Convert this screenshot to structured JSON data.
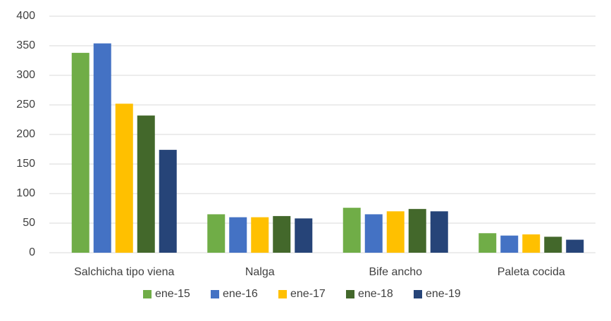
{
  "chart_data": {
    "type": "bar",
    "categories": [
      "Salchicha tipo viena",
      "Nalga",
      "Bife ancho",
      "Paleta cocida"
    ],
    "series": [
      {
        "name": "ene-15",
        "color": "#70ad47",
        "values": [
          338,
          65,
          76,
          33
        ]
      },
      {
        "name": "ene-16",
        "color": "#4472c4",
        "values": [
          354,
          60,
          65,
          29
        ]
      },
      {
        "name": "ene-17",
        "color": "#ffc000",
        "values": [
          252,
          60,
          70,
          31
        ]
      },
      {
        "name": "ene-18",
        "color": "#43682b",
        "values": [
          232,
          62,
          74,
          27
        ]
      },
      {
        "name": "ene-19",
        "color": "#264478",
        "values": [
          174,
          58,
          70,
          22
        ]
      }
    ],
    "ylim": [
      0,
      400
    ],
    "yticks": [
      0,
      50,
      100,
      150,
      200,
      250,
      300,
      350,
      400
    ],
    "grid": true,
    "legend": "bottom"
  }
}
